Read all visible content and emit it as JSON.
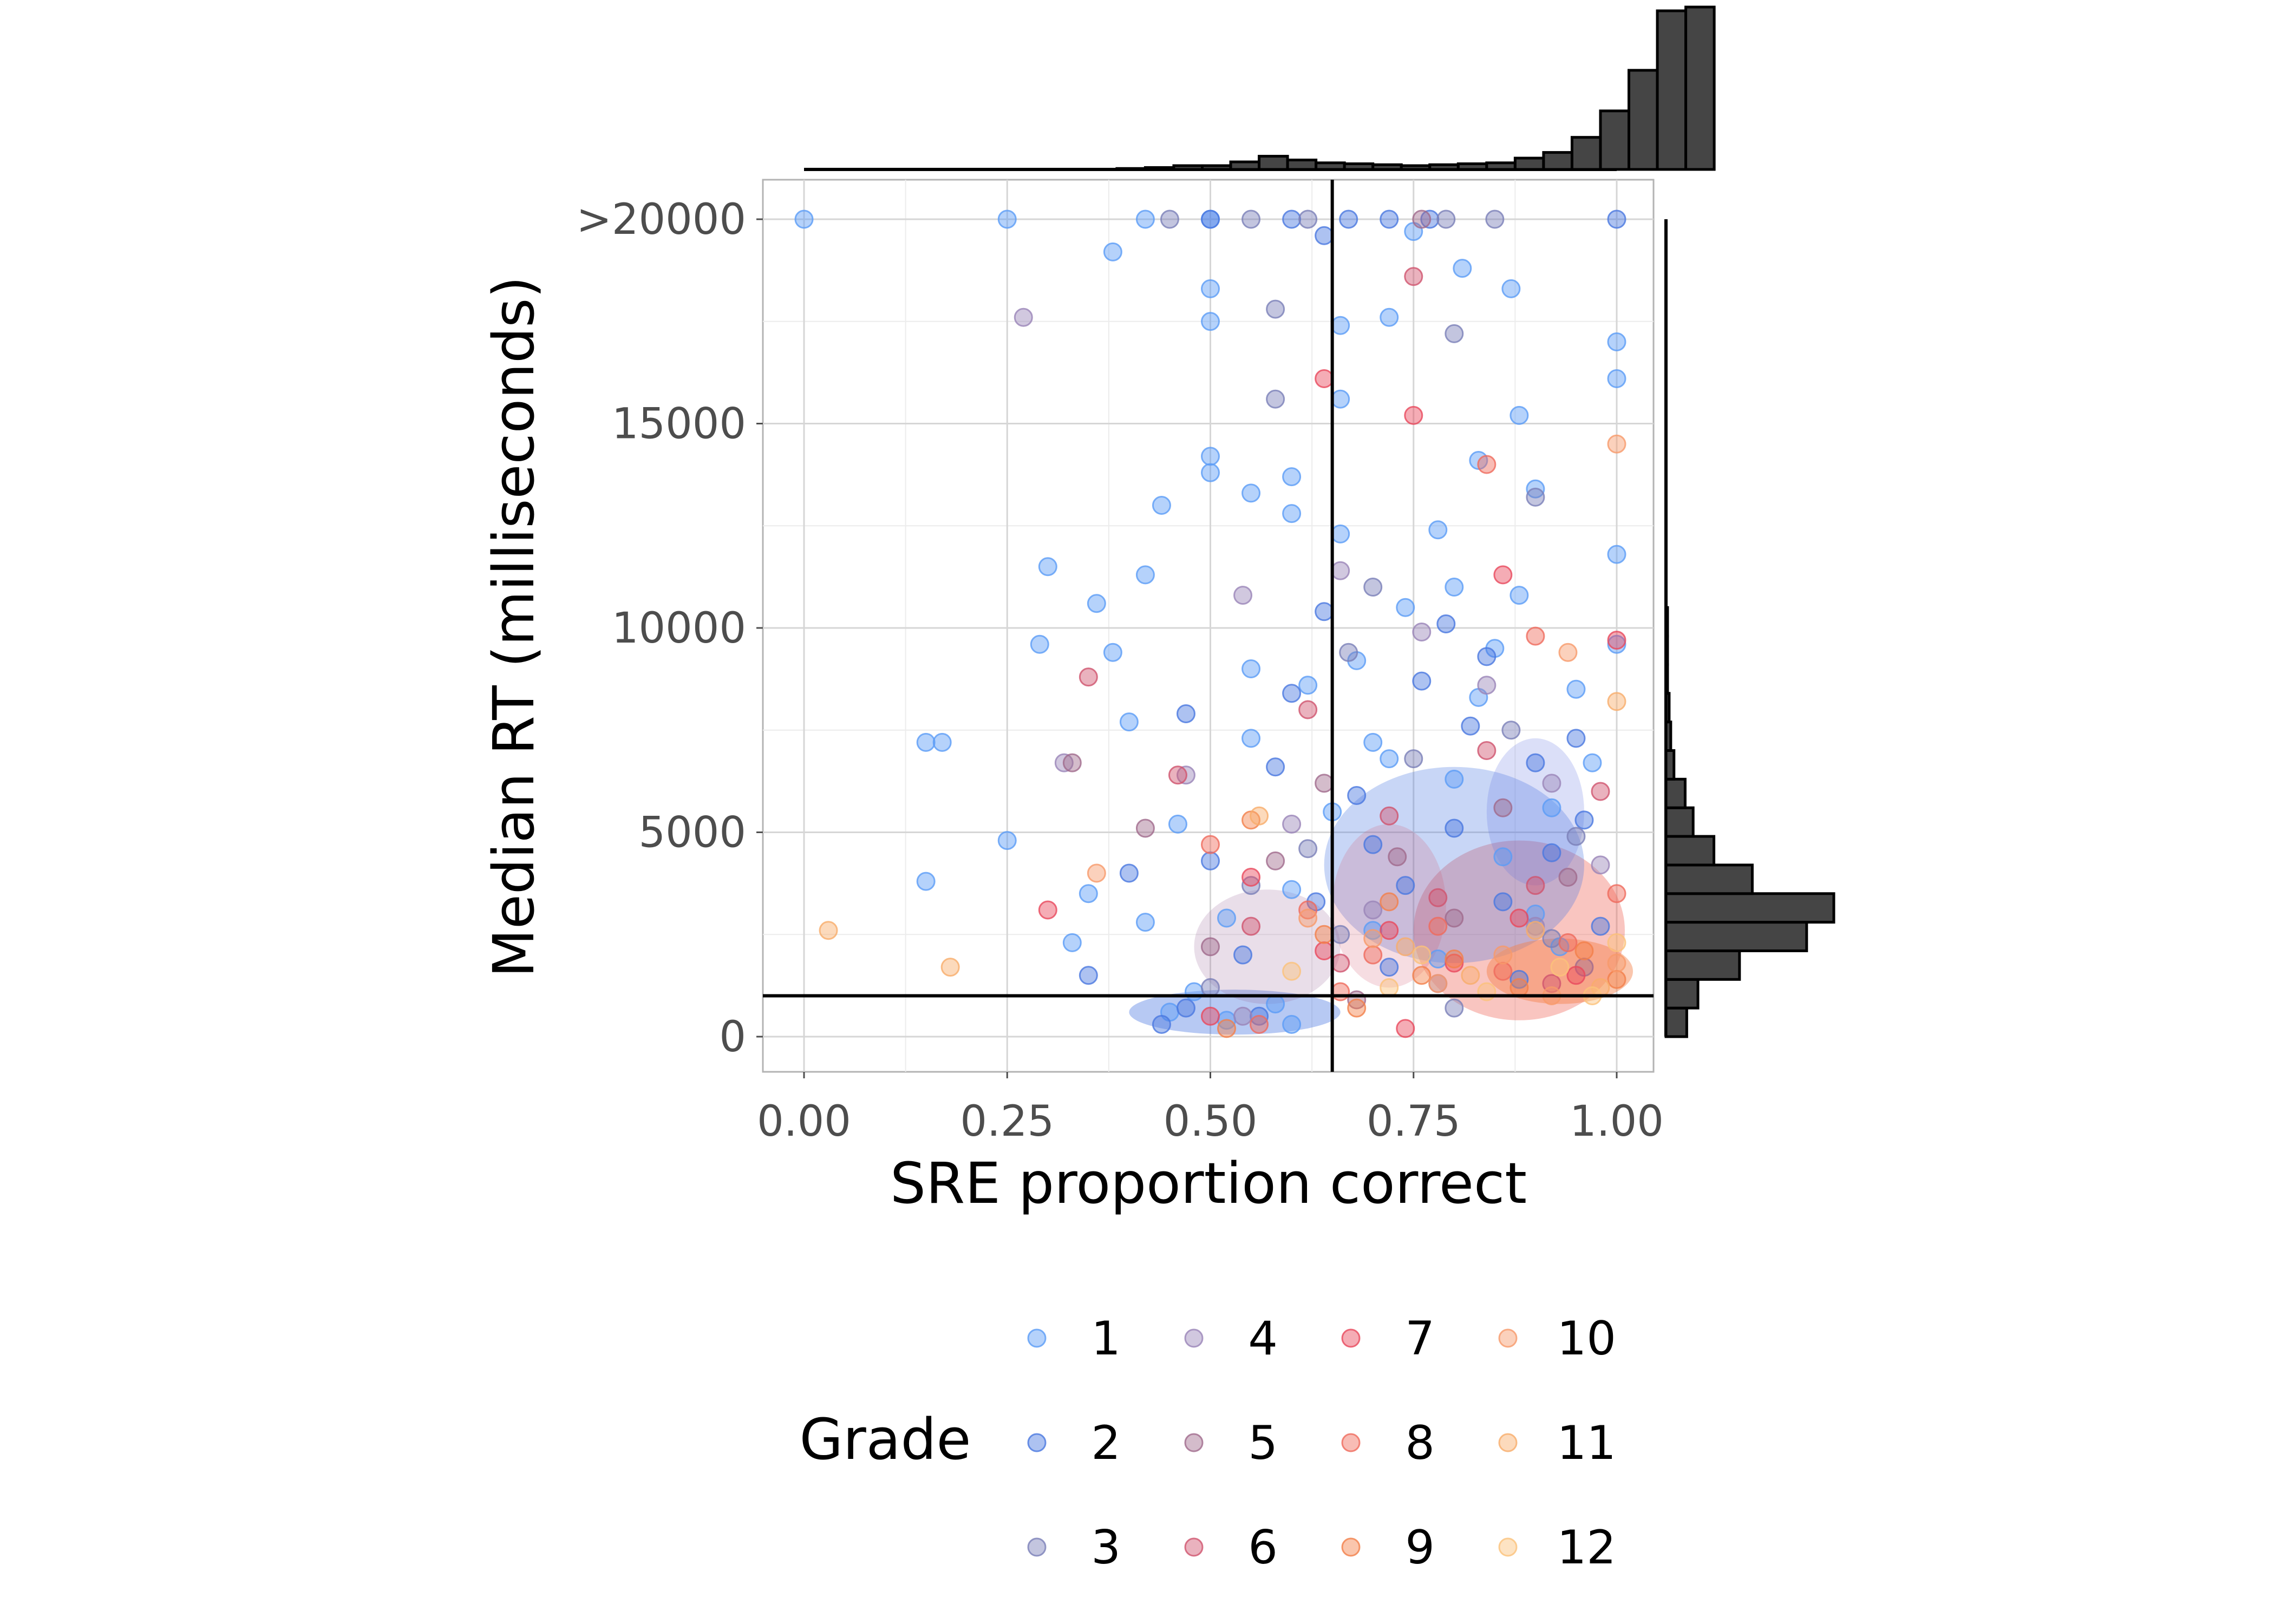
{
  "chart_data": {
    "type": "scatter",
    "title": "",
    "xlabel": "SRE proportion correct",
    "ylabel": "Median RT (milliseconds)",
    "xlim": [
      -0.05,
      1.05
    ],
    "ylim": [
      -1000,
      21000
    ],
    "x_ticks": [
      0,
      0.25,
      0.5,
      0.75,
      1.0
    ],
    "x_tick_labels": [
      "0.00",
      "0.25",
      "0.50",
      "0.75",
      "1.00"
    ],
    "y_ticks": [
      0,
      5000,
      10000,
      15000,
      20000
    ],
    "y_tick_labels": [
      "0",
      "5000",
      "10000",
      "15000",
      ">20000"
    ],
    "grid": true,
    "reference_lines": {
      "vertical_x": 0.65,
      "horizontal_y": 1000
    },
    "legend": {
      "title": "Grade",
      "placement": "bottom",
      "entries": [
        {
          "label": "1",
          "color": "#5b9cf6"
        },
        {
          "label": "2",
          "color": "#4a78e0"
        },
        {
          "label": "3",
          "color": "#7a7fb8"
        },
        {
          "label": "4",
          "color": "#9a84b8"
        },
        {
          "label": "5",
          "color": "#a06a8c"
        },
        {
          "label": "6",
          "color": "#d0546e"
        },
        {
          "label": "7",
          "color": "#e8485c"
        },
        {
          "label": "8",
          "color": "#ef6a5c"
        },
        {
          "label": "9",
          "color": "#f3804a"
        },
        {
          "label": "10",
          "color": "#f79a6a"
        },
        {
          "label": "11",
          "color": "#f8ac6a"
        },
        {
          "label": "12",
          "color": "#fbc27a"
        }
      ]
    },
    "series": [
      {
        "name": "1",
        "points": [
          [
            0.0,
            20000
          ],
          [
            0.25,
            20000
          ],
          [
            0.42,
            20000
          ],
          [
            0.5,
            20000
          ],
          [
            0.38,
            19200
          ],
          [
            0.5,
            18300
          ],
          [
            0.5,
            17500
          ],
          [
            0.3,
            11500
          ],
          [
            0.36,
            10600
          ],
          [
            0.29,
            9600
          ],
          [
            0.15,
            7200
          ],
          [
            0.17,
            7200
          ],
          [
            0.25,
            4800
          ],
          [
            0.15,
            3800
          ],
          [
            0.35,
            3500
          ],
          [
            0.33,
            2300
          ],
          [
            0.5,
            14200
          ],
          [
            0.5,
            13800
          ],
          [
            0.55,
            13300
          ],
          [
            0.6,
            13700
          ],
          [
            0.6,
            12800
          ],
          [
            0.44,
            13000
          ],
          [
            0.42,
            11300
          ],
          [
            0.38,
            9400
          ],
          [
            0.4,
            7700
          ],
          [
            0.66,
            15600
          ],
          [
            0.66,
            17400
          ],
          [
            0.72,
            17600
          ],
          [
            0.81,
            18800
          ],
          [
            0.87,
            18300
          ],
          [
            0.88,
            15200
          ],
          [
            0.9,
            13400
          ],
          [
            1.0,
            17000
          ],
          [
            1.0,
            16100
          ],
          [
            1.0,
            11800
          ],
          [
            1.0,
            9600
          ],
          [
            0.66,
            12300
          ],
          [
            0.78,
            12400
          ],
          [
            0.83,
            14100
          ],
          [
            0.75,
            19700
          ],
          [
            0.55,
            9000
          ],
          [
            0.62,
            8600
          ],
          [
            0.7,
            7200
          ],
          [
            0.8,
            6300
          ],
          [
            0.86,
            4400
          ],
          [
            0.46,
            5200
          ],
          [
            0.52,
            2900
          ],
          [
            0.6,
            3600
          ],
          [
            0.9,
            3000
          ],
          [
            0.7,
            2600
          ],
          [
            0.78,
            1900
          ],
          [
            0.48,
            1100
          ],
          [
            0.58,
            800
          ],
          [
            0.95,
            8500
          ],
          [
            0.85,
            9500
          ],
          [
            0.68,
            9200
          ],
          [
            0.55,
            7300
          ],
          [
            0.65,
            5500
          ],
          [
            0.92,
            5600
          ],
          [
            0.97,
            6700
          ],
          [
            0.42,
            2800
          ],
          [
            0.45,
            600
          ],
          [
            0.52,
            400
          ],
          [
            0.6,
            300
          ],
          [
            0.74,
            10500
          ],
          [
            0.8,
            11000
          ],
          [
            0.88,
            10800
          ],
          [
            0.72,
            6800
          ],
          [
            0.83,
            8300
          ],
          [
            0.93,
            2200
          ]
        ]
      },
      {
        "name": "2",
        "points": [
          [
            0.5,
            20000
          ],
          [
            0.6,
            20000
          ],
          [
            0.67,
            20000
          ],
          [
            0.72,
            20000
          ],
          [
            0.77,
            20000
          ],
          [
            1.0,
            20000
          ],
          [
            0.64,
            19600
          ],
          [
            0.4,
            4000
          ],
          [
            0.35,
            1500
          ],
          [
            0.47,
            7900
          ],
          [
            0.58,
            6600
          ],
          [
            0.64,
            10400
          ],
          [
            0.76,
            8700
          ],
          [
            0.82,
            7600
          ],
          [
            0.9,
            6700
          ],
          [
            0.96,
            5300
          ],
          [
            0.7,
            4700
          ],
          [
            0.63,
            3300
          ],
          [
            0.54,
            2000
          ],
          [
            0.47,
            700
          ],
          [
            0.86,
            3300
          ],
          [
            0.74,
            3700
          ],
          [
            0.95,
            7300
          ],
          [
            0.84,
            9300
          ],
          [
            0.79,
            10100
          ],
          [
            0.6,
            8400
          ],
          [
            0.5,
            4300
          ],
          [
            0.72,
            1700
          ],
          [
            0.88,
            1400
          ],
          [
            0.44,
            300
          ],
          [
            0.56,
            500
          ],
          [
            0.68,
            5900
          ],
          [
            0.8,
            5100
          ],
          [
            0.92,
            4500
          ],
          [
            0.98,
            2700
          ]
        ]
      },
      {
        "name": "3",
        "points": [
          [
            0.45,
            20000
          ],
          [
            0.55,
            20000
          ],
          [
            0.62,
            20000
          ],
          [
            0.79,
            20000
          ],
          [
            0.85,
            20000
          ],
          [
            0.58,
            15600
          ],
          [
            0.58,
            17800
          ],
          [
            0.8,
            17200
          ],
          [
            0.9,
            13200
          ],
          [
            0.7,
            11000
          ],
          [
            0.67,
            9400
          ],
          [
            0.75,
            6800
          ],
          [
            0.87,
            7500
          ],
          [
            0.95,
            4900
          ],
          [
            0.55,
            3700
          ],
          [
            0.66,
            2500
          ],
          [
            0.5,
            1200
          ],
          [
            0.8,
            700
          ],
          [
            0.92,
            2400
          ],
          [
            0.62,
            4600
          ]
        ]
      },
      {
        "name": "4",
        "points": [
          [
            0.27,
            17600
          ],
          [
            0.54,
            10800
          ],
          [
            0.66,
            11400
          ],
          [
            0.76,
            9900
          ],
          [
            0.84,
            8600
          ],
          [
            0.92,
            6200
          ],
          [
            0.98,
            4200
          ],
          [
            0.47,
            6400
          ],
          [
            0.32,
            6700
          ],
          [
            0.6,
            5200
          ],
          [
            0.7,
            3100
          ],
          [
            0.78,
            1300
          ],
          [
            0.9,
            2700
          ],
          [
            0.54,
            500
          ]
        ]
      },
      {
        "name": "5",
        "points": [
          [
            0.76,
            20000
          ],
          [
            0.42,
            5100
          ],
          [
            0.58,
            4300
          ],
          [
            0.64,
            6200
          ],
          [
            0.73,
            4400
          ],
          [
            0.86,
            5600
          ],
          [
            0.94,
            3900
          ],
          [
            0.33,
            6700
          ],
          [
            0.5,
            2200
          ],
          [
            0.68,
            900
          ],
          [
            0.8,
            2900
          ],
          [
            0.96,
            1700
          ]
        ]
      },
      {
        "name": "6",
        "points": [
          [
            0.75,
            18600
          ],
          [
            0.35,
            8800
          ],
          [
            0.46,
            6400
          ],
          [
            0.62,
            8000
          ],
          [
            0.72,
            5400
          ],
          [
            0.84,
            7000
          ],
          [
            0.9,
            3700
          ],
          [
            0.98,
            6000
          ],
          [
            0.55,
            2700
          ],
          [
            0.66,
            1800
          ],
          [
            0.78,
            3400
          ],
          [
            0.92,
            1300
          ]
        ]
      },
      {
        "name": "7",
        "points": [
          [
            0.64,
            16100
          ],
          [
            0.75,
            15200
          ],
          [
            0.86,
            11300
          ],
          [
            1.0,
            9700
          ],
          [
            0.3,
            3100
          ],
          [
            0.55,
            3900
          ],
          [
            0.64,
            2100
          ],
          [
            0.72,
            2600
          ],
          [
            0.8,
            1800
          ],
          [
            0.88,
            2900
          ],
          [
            0.95,
            1500
          ],
          [
            0.5,
            500
          ],
          [
            0.74,
            200
          ]
        ]
      },
      {
        "name": "8",
        "points": [
          [
            0.84,
            14000
          ],
          [
            0.9,
            9800
          ],
          [
            0.5,
            4700
          ],
          [
            0.62,
            3100
          ],
          [
            0.7,
            2000
          ],
          [
            0.78,
            2700
          ],
          [
            0.86,
            1600
          ],
          [
            0.94,
            2300
          ],
          [
            1.0,
            3500
          ],
          [
            0.56,
            300
          ],
          [
            0.66,
            1100
          ]
        ]
      },
      {
        "name": "9",
        "points": [
          [
            0.55,
            5300
          ],
          [
            0.64,
            2500
          ],
          [
            0.72,
            3300
          ],
          [
            0.8,
            1900
          ],
          [
            0.88,
            1200
          ],
          [
            0.96,
            2100
          ],
          [
            1.0,
            1400
          ],
          [
            0.52,
            200
          ],
          [
            0.68,
            700
          ],
          [
            0.76,
            1500
          ]
        ]
      },
      {
        "name": "10",
        "points": [
          [
            1.0,
            14500
          ],
          [
            0.94,
            9400
          ],
          [
            0.36,
            4000
          ],
          [
            0.62,
            2900
          ],
          [
            0.7,
            2400
          ],
          [
            0.78,
            1300
          ],
          [
            0.86,
            2000
          ],
          [
            0.92,
            1000
          ],
          [
            1.0,
            1800
          ]
        ]
      },
      {
        "name": "11",
        "points": [
          [
            0.03,
            2600
          ],
          [
            0.18,
            1700
          ],
          [
            0.56,
            5400
          ],
          [
            0.74,
            2200
          ],
          [
            0.82,
            1500
          ],
          [
            0.9,
            2600
          ],
          [
            0.98,
            1200
          ],
          [
            1.0,
            8200
          ]
        ]
      },
      {
        "name": "12",
        "points": [
          [
            0.6,
            1600
          ],
          [
            0.76,
            2000
          ],
          [
            0.84,
            1100
          ],
          [
            0.93,
            1700
          ],
          [
            1.0,
            2300
          ],
          [
            0.97,
            1000
          ],
          [
            0.72,
            1200
          ]
        ]
      }
    ],
    "marginal_histograms": {
      "top": {
        "variable": "SRE proportion correct",
        "bin_start": 0.0,
        "bin_width": 0.035,
        "counts": [
          0,
          0,
          0,
          0,
          0,
          0,
          0,
          0,
          0,
          0,
          0,
          1,
          2,
          4,
          4,
          8,
          14,
          10,
          7,
          6,
          5,
          4,
          5,
          6,
          7,
          12,
          18,
          34,
          62,
          105,
          168,
          172
        ]
      },
      "right": {
        "variable": "Median RT (milliseconds)",
        "bin_start": 0,
        "bin_width": 700,
        "counts": [
          13,
          20,
          46,
          88,
          105,
          54,
          30,
          17,
          12,
          5,
          3,
          2,
          1,
          1,
          1,
          0,
          0,
          0,
          0,
          0,
          0,
          0,
          0,
          0,
          0,
          0,
          0,
          0,
          0
        ]
      }
    },
    "density_note": ""
  }
}
